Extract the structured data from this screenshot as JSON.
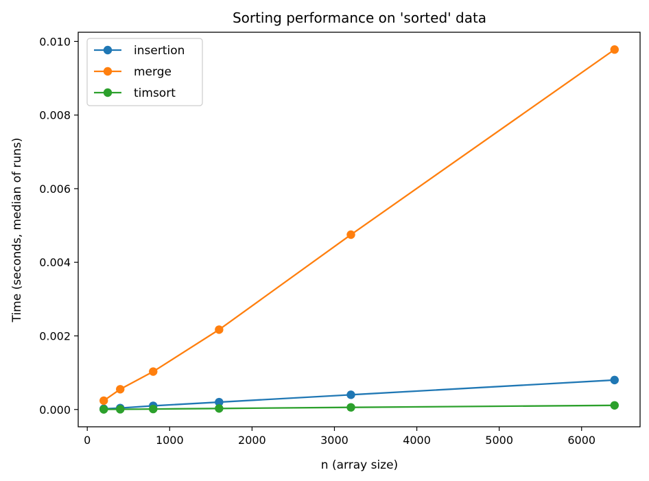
{
  "chart_data": {
    "type": "line",
    "title": "Sorting performance on 'sorted' data",
    "xlabel": "n (array size)",
    "ylabel": "Time (seconds, median of runs)",
    "x": [
      200,
      400,
      800,
      1600,
      3200,
      6400
    ],
    "xlim": [
      -110,
      6710
    ],
    "ylim": [
      -0.00047,
      0.01025
    ],
    "xticks": [
      0,
      1000,
      2000,
      3000,
      4000,
      5000,
      6000
    ],
    "xtick_labels": [
      "0",
      "1000",
      "2000",
      "3000",
      "4000",
      "5000",
      "6000"
    ],
    "yticks": [
      0.0,
      0.002,
      0.004,
      0.006,
      0.008,
      0.01
    ],
    "ytick_labels": [
      "0.000",
      "0.002",
      "0.004",
      "0.006",
      "0.008",
      "0.010"
    ],
    "grid": false,
    "legend_position": "top-left",
    "series": [
      {
        "name": "insertion",
        "color": "#1f77b4",
        "values": [
          2e-05,
          4e-05,
          0.0001,
          0.0002,
          0.0004,
          0.0008
        ]
      },
      {
        "name": "merge",
        "color": "#ff7f0e",
        "values": [
          0.00024,
          0.00055,
          0.00103,
          0.00217,
          0.00475,
          0.00978
        ]
      },
      {
        "name": "timsort",
        "color": "#2ca02c",
        "values": [
          3e-06,
          6e-06,
          1.3e-05,
          2.8e-05,
          5.8e-05,
          0.000112
        ]
      }
    ]
  }
}
